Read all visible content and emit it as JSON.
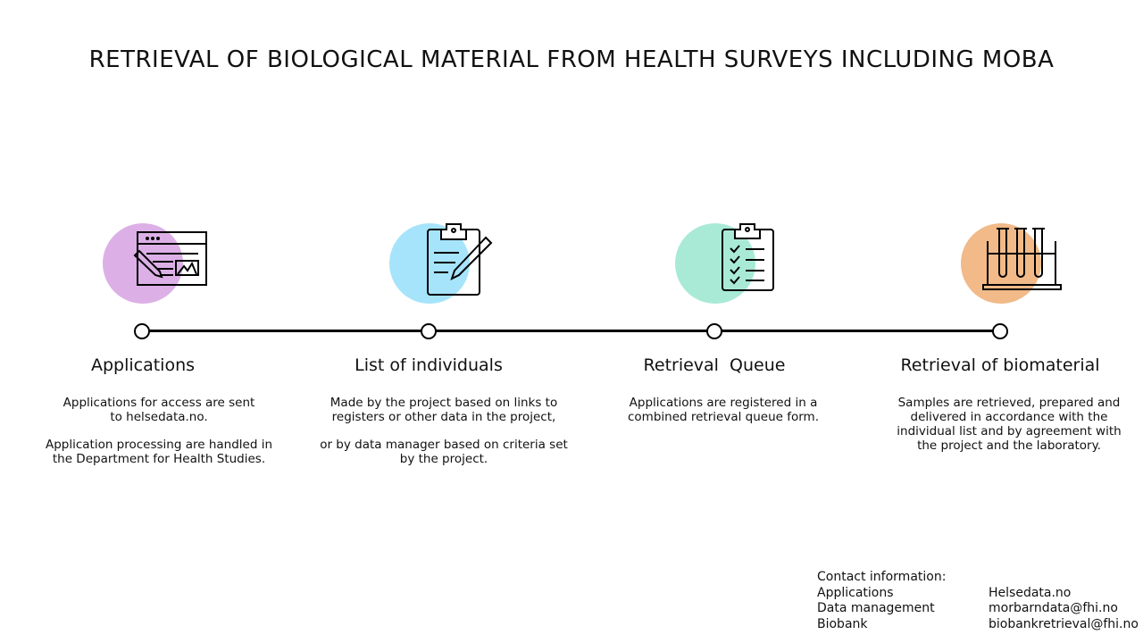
{
  "title": "RETRIEVAL OF BIOLOGICAL MATERIAL FROM HEALTH SURVEYS INCLUDING MOBA",
  "steps": [
    {
      "title": "Applications",
      "icon": "web-form-icon",
      "color": "#dcb0e6",
      "paragraphs": [
        "Applications for access are sent to helsedata.no.",
        "Application processing are handled in the Department for Health Studies."
      ]
    },
    {
      "title": "List of individuals",
      "icon": "clipboard-pencil-icon",
      "color": "#a6e4fb",
      "paragraphs": [
        "Made by the project based on links to registers or other data in the project,",
        "or by data manager based on criteria set by the project."
      ]
    },
    {
      "title": "Retrieval  Queue",
      "icon": "checklist-icon",
      "color": "#a8ead6",
      "paragraphs": [
        "Applications are registered in a combined retrieval queue form."
      ]
    },
    {
      "title": "Retrieval of biomaterial",
      "icon": "test-tubes-icon",
      "color": "#f1ba88",
      "paragraphs": [
        "Samples are retrieved, prepared and delivered in accordance with the individual list and by agreement with the project and the laboratory."
      ]
    }
  ],
  "contact": {
    "heading": "Contact information:",
    "rows": [
      {
        "label": "Applications",
        "value": "Helsedata.no"
      },
      {
        "label": "Data management",
        "value": "morbarndata@fhi.no"
      },
      {
        "label": "Biobank",
        "value": "biobankretrieval@fhi.no"
      }
    ]
  }
}
